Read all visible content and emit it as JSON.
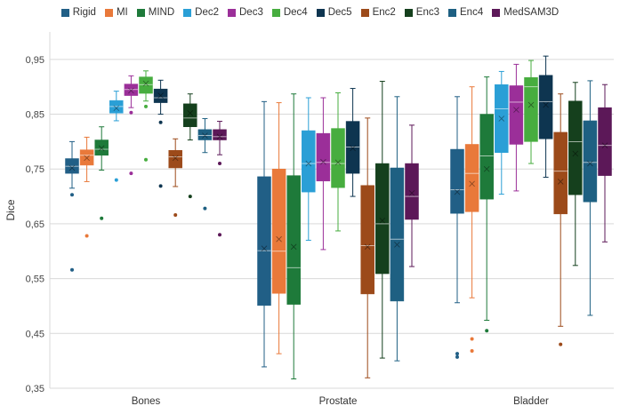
{
  "chart_data": {
    "type": "box",
    "title": "",
    "xlabel": "",
    "ylabel": "Dice",
    "ylim": [
      0.35,
      1.0
    ],
    "yticks": [
      "0,35",
      "0,45",
      "0,55",
      "0,65",
      "0,75",
      "0,85",
      "0,95"
    ],
    "grid": "horizontal",
    "legend_position": "top",
    "categories": [
      "Bones",
      "Prostate",
      "Bladder"
    ],
    "series": [
      {
        "name": "Rigid",
        "color": "#215f86",
        "boxes": [
          {
            "min": 0.715,
            "q1": 0.742,
            "median": 0.755,
            "mean": 0.752,
            "q3": 0.769,
            "max": 0.8,
            "outliers": [
              0.703,
              0.566
            ]
          },
          {
            "min": 0.389,
            "q1": 0.501,
            "median": 0.601,
            "mean": 0.605,
            "q3": 0.736,
            "max": 0.873,
            "outliers": []
          },
          {
            "min": 0.506,
            "q1": 0.669,
            "median": 0.712,
            "mean": 0.708,
            "q3": 0.786,
            "max": 0.882,
            "outliers": [
              0.413,
              0.407
            ]
          }
        ]
      },
      {
        "name": "MI",
        "color": "#e9793a",
        "boxes": [
          {
            "min": 0.727,
            "q1": 0.757,
            "median": 0.775,
            "mean": 0.77,
            "q3": 0.785,
            "max": 0.808,
            "outliers": [
              0.628
            ]
          },
          {
            "min": 0.413,
            "q1": 0.523,
            "median": 0.6,
            "mean": 0.622,
            "q3": 0.75,
            "max": 0.871,
            "outliers": []
          },
          {
            "min": 0.515,
            "q1": 0.672,
            "median": 0.742,
            "mean": 0.723,
            "q3": 0.795,
            "max": 0.9,
            "outliers": [
              0.44,
              0.418
            ]
          }
        ]
      },
      {
        "name": "MIND",
        "color": "#1e7a3a",
        "boxes": [
          {
            "min": 0.748,
            "q1": 0.775,
            "median": 0.786,
            "mean": 0.788,
            "q3": 0.803,
            "max": 0.827,
            "outliers": [
              0.66
            ]
          },
          {
            "min": 0.367,
            "q1": 0.503,
            "median": 0.57,
            "mean": 0.608,
            "q3": 0.738,
            "max": 0.887,
            "outliers": []
          },
          {
            "min": 0.474,
            "q1": 0.695,
            "median": 0.774,
            "mean": 0.75,
            "q3": 0.85,
            "max": 0.918,
            "outliers": [
              0.455
            ]
          }
        ]
      },
      {
        "name": "Dec2",
        "color": "#2a9fd6",
        "boxes": [
          {
            "min": 0.838,
            "q1": 0.852,
            "median": 0.864,
            "mean": 0.861,
            "q3": 0.875,
            "max": 0.892,
            "outliers": [
              0.73
            ]
          },
          {
            "min": 0.62,
            "q1": 0.708,
            "median": 0.76,
            "mean": 0.76,
            "q3": 0.82,
            "max": 0.88,
            "outliers": []
          },
          {
            "min": 0.704,
            "q1": 0.78,
            "median": 0.86,
            "mean": 0.842,
            "q3": 0.904,
            "max": 0.928,
            "outliers": []
          }
        ]
      },
      {
        "name": "Dec3",
        "color": "#9b2f99",
        "boxes": [
          {
            "min": 0.862,
            "q1": 0.884,
            "median": 0.895,
            "mean": 0.893,
            "q3": 0.905,
            "max": 0.92,
            "outliers": [
              0.853,
              0.742
            ]
          },
          {
            "min": 0.603,
            "q1": 0.728,
            "median": 0.762,
            "mean": 0.763,
            "q3": 0.815,
            "max": 0.88,
            "outliers": []
          },
          {
            "min": 0.71,
            "q1": 0.795,
            "median": 0.872,
            "mean": 0.858,
            "q3": 0.902,
            "max": 0.941,
            "outliers": []
          }
        ]
      },
      {
        "name": "Dec4",
        "color": "#47ad3f",
        "boxes": [
          {
            "min": 0.874,
            "q1": 0.888,
            "median": 0.904,
            "mean": 0.906,
            "q3": 0.918,
            "max": 0.929,
            "outliers": [
              0.864,
              0.767
            ]
          },
          {
            "min": 0.637,
            "q1": 0.716,
            "median": 0.76,
            "mean": 0.762,
            "q3": 0.824,
            "max": 0.889,
            "outliers": []
          },
          {
            "min": 0.76,
            "q1": 0.8,
            "median": 0.9,
            "mean": 0.867,
            "q3": 0.917,
            "max": 0.948,
            "outliers": []
          }
        ]
      },
      {
        "name": "Dec5",
        "color": "#0e3550",
        "boxes": [
          {
            "min": 0.85,
            "q1": 0.871,
            "median": 0.88,
            "mean": 0.884,
            "q3": 0.896,
            "max": 0.912,
            "outliers": [
              0.835,
              0.719
            ]
          },
          {
            "min": 0.7,
            "q1": 0.742,
            "median": 0.79,
            "mean": 0.788,
            "q3": 0.837,
            "max": 0.897,
            "outliers": []
          },
          {
            "min": 0.735,
            "q1": 0.805,
            "median": 0.873,
            "mean": 0.867,
            "q3": 0.921,
            "max": 0.956,
            "outliers": []
          }
        ]
      },
      {
        "name": "Enc2",
        "color": "#9c4a1a",
        "boxes": [
          {
            "min": 0.718,
            "q1": 0.752,
            "median": 0.772,
            "mean": 0.77,
            "q3": 0.784,
            "max": 0.805,
            "outliers": [
              0.666
            ]
          },
          {
            "min": 0.369,
            "q1": 0.522,
            "median": 0.61,
            "mean": 0.608,
            "q3": 0.72,
            "max": 0.843,
            "outliers": []
          },
          {
            "min": 0.463,
            "q1": 0.668,
            "median": 0.746,
            "mean": 0.727,
            "q3": 0.817,
            "max": 0.887,
            "outliers": [
              0.43
            ]
          }
        ]
      },
      {
        "name": "Enc3",
        "color": "#15401d",
        "boxes": [
          {
            "min": 0.803,
            "q1": 0.827,
            "median": 0.843,
            "mean": 0.852,
            "q3": 0.869,
            "max": 0.887,
            "outliers": [
              0.7
            ]
          },
          {
            "min": 0.405,
            "q1": 0.559,
            "median": 0.65,
            "mean": 0.656,
            "q3": 0.76,
            "max": 0.91,
            "outliers": []
          },
          {
            "min": 0.574,
            "q1": 0.703,
            "median": 0.8,
            "mean": 0.778,
            "q3": 0.874,
            "max": 0.908,
            "outliers": []
          }
        ]
      },
      {
        "name": "Enc4",
        "color": "#1e6082",
        "boxes": [
          {
            "min": 0.78,
            "q1": 0.803,
            "median": 0.811,
            "mean": 0.811,
            "q3": 0.822,
            "max": 0.842,
            "outliers": [
              0.678
            ]
          },
          {
            "min": 0.4,
            "q1": 0.509,
            "median": 0.622,
            "mean": 0.612,
            "q3": 0.752,
            "max": 0.882,
            "outliers": []
          },
          {
            "min": 0.483,
            "q1": 0.69,
            "median": 0.762,
            "mean": 0.76,
            "q3": 0.838,
            "max": 0.911,
            "outliers": []
          }
        ]
      },
      {
        "name": "MedSAM3D",
        "color": "#5c1858",
        "boxes": [
          {
            "min": 0.776,
            "q1": 0.803,
            "median": 0.809,
            "mean": 0.809,
            "q3": 0.822,
            "max": 0.837,
            "outliers": [
              0.76,
              0.63
            ]
          },
          {
            "min": 0.572,
            "q1": 0.658,
            "median": 0.7,
            "mean": 0.706,
            "q3": 0.76,
            "max": 0.83,
            "outliers": []
          },
          {
            "min": 0.617,
            "q1": 0.738,
            "median": 0.793,
            "mean": 0.793,
            "q3": 0.862,
            "max": 0.904,
            "outliers": []
          }
        ]
      }
    ]
  }
}
